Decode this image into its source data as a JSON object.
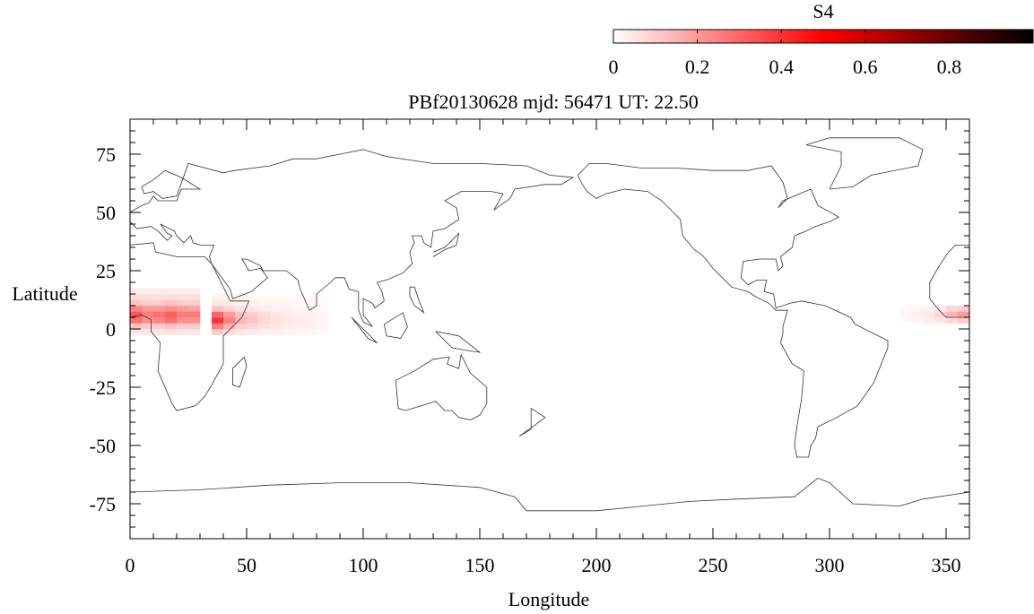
{
  "chart_data": {
    "type": "heatmap",
    "title": "PBf20130628  mjd: 56471  UT:  22.50",
    "xlabel": "Longitude",
    "ylabel": "Latitude",
    "xlim": [
      0,
      360
    ],
    "ylim": [
      -90,
      90
    ],
    "xticks": [
      0,
      50,
      100,
      150,
      200,
      250,
      300,
      350
    ],
    "xtick_labels": [
      "0",
      "50",
      "100",
      "150",
      "200",
      "250",
      "300",
      "350"
    ],
    "yticks": [
      75,
      50,
      25,
      0,
      -25,
      -50,
      -75
    ],
    "ytick_labels": [
      "75",
      "50",
      "25",
      "0",
      "-25",
      "-50",
      "-75"
    ],
    "colorbar": {
      "label": "S4",
      "range": [
        0,
        1
      ],
      "ticks": [
        0,
        0.2,
        0.4,
        0.6,
        0.8
      ],
      "tick_labels": [
        "0",
        "0.2",
        "0.4",
        "0.6",
        "0.8"
      ],
      "colors": [
        "#ffffff",
        "#ff0000",
        "#000000"
      ]
    },
    "grids": [
      {
        "lon0": 0,
        "lat0": -2.5,
        "dlon": 5,
        "dlat": 2.5,
        "values": [
          [
            0.05,
            0.05,
            0.05,
            0.06,
            0.05,
            0.05
          ],
          [
            0.12,
            0.1,
            0.1,
            0.12,
            0.1,
            0.1
          ],
          [
            0.28,
            0.22,
            0.24,
            0.28,
            0.22,
            0.22
          ],
          [
            0.33,
            0.26,
            0.28,
            0.32,
            0.26,
            0.26
          ],
          [
            0.24,
            0.2,
            0.2,
            0.22,
            0.2,
            0.18
          ],
          [
            0.12,
            0.1,
            0.1,
            0.12,
            0.1,
            0.1
          ],
          [
            0.07,
            0.06,
            0.06,
            0.07,
            0.06,
            0.06
          ],
          [
            0.04,
            0.04,
            0.04,
            0.04,
            0.04,
            0.04
          ]
        ]
      },
      {
        "lon0": 35,
        "lat0": -2.5,
        "dlon": 5,
        "dlat": 2.5,
        "values": [
          [
            0.1,
            0.07,
            0.05,
            0.04,
            0.03,
            0.03,
            0.02,
            0.02,
            0.02,
            0.01
          ],
          [
            0.25,
            0.15,
            0.1,
            0.08,
            0.06,
            0.05,
            0.04,
            0.03,
            0.03,
            0.02
          ],
          [
            0.4,
            0.25,
            0.15,
            0.12,
            0.08,
            0.06,
            0.05,
            0.04,
            0.03,
            0.02
          ],
          [
            0.3,
            0.2,
            0.12,
            0.1,
            0.07,
            0.05,
            0.04,
            0.03,
            0.03,
            0.02
          ],
          [
            0.12,
            0.08,
            0.06,
            0.05,
            0.04,
            0.03,
            0.03,
            0.02,
            0.02,
            0.01
          ],
          [
            0.05,
            0.04,
            0.03,
            0.03,
            0.02,
            0.02,
            0.02,
            0.01,
            0.01,
            0.01
          ],
          [
            0.02,
            0.02,
            0.02,
            0.01,
            0.01,
            0.01,
            0.01,
            0.01,
            0.01,
            0.01
          ]
        ]
      },
      {
        "lon0": 330,
        "lat0": 2.5,
        "dlon": 5,
        "dlat": 2.5,
        "values": [
          [
            0.01,
            0.02,
            0.03,
            0.05,
            0.08,
            0.1
          ],
          [
            0.02,
            0.03,
            0.05,
            0.08,
            0.15,
            0.2
          ],
          [
            0.01,
            0.02,
            0.03,
            0.04,
            0.08,
            0.1
          ]
        ]
      }
    ],
    "coastlines": [
      [
        [
          0,
          36
        ],
        [
          10,
          37
        ],
        [
          11,
          33
        ],
        [
          20,
          31
        ],
        [
          32,
          31
        ],
        [
          35,
          28
        ],
        [
          43,
          12
        ],
        [
          51,
          12
        ],
        [
          48,
          5
        ],
        [
          40,
          -3
        ],
        [
          40,
          -15
        ],
        [
          35,
          -24
        ],
        [
          32,
          -29
        ],
        [
          28,
          -33
        ],
        [
          20,
          -35
        ],
        [
          18,
          -32
        ],
        [
          12,
          -18
        ],
        [
          13,
          -6
        ],
        [
          9,
          -1
        ],
        [
          9,
          4
        ],
        [
          5,
          6
        ],
        [
          0,
          5
        ]
      ],
      [
        [
          360,
          5
        ],
        [
          355,
          5
        ],
        [
          350,
          5
        ],
        [
          347,
          8
        ],
        [
          343,
          13
        ],
        [
          343,
          20
        ],
        [
          347,
          27
        ],
        [
          351,
          33
        ],
        [
          354,
          36
        ],
        [
          360,
          36
        ]
      ],
      [
        [
          0,
          50
        ],
        [
          5,
          53
        ],
        [
          8,
          54
        ],
        [
          10,
          57
        ],
        [
          12,
          55
        ],
        [
          20,
          55
        ],
        [
          22,
          60
        ],
        [
          30,
          60
        ],
        [
          22,
          65
        ],
        [
          15,
          68
        ],
        [
          10,
          64
        ],
        [
          5,
          61
        ],
        [
          6,
          58
        ],
        [
          10,
          59
        ],
        [
          14,
          56
        ],
        [
          20,
          57
        ],
        [
          25,
          71
        ],
        [
          40,
          67
        ],
        [
          45,
          68
        ],
        [
          60,
          70
        ],
        [
          70,
          73
        ],
        [
          80,
          73
        ],
        [
          100,
          77
        ],
        [
          110,
          74
        ],
        [
          130,
          71
        ],
        [
          150,
          71
        ],
        [
          170,
          70
        ],
        [
          180,
          66
        ],
        [
          190,
          65
        ],
        [
          185,
          62
        ],
        [
          178,
          62
        ],
        [
          165,
          60
        ],
        [
          163,
          56
        ],
        [
          156,
          51
        ],
        [
          160,
          58
        ],
        [
          155,
          59
        ],
        [
          142,
          59
        ],
        [
          135,
          55
        ],
        [
          140,
          52
        ],
        [
          141,
          47
        ],
        [
          135,
          43
        ],
        [
          130,
          42
        ],
        [
          129,
          35
        ],
        [
          126,
          37
        ],
        [
          125,
          40
        ],
        [
          121,
          40
        ],
        [
          122,
          37
        ],
        [
          120,
          33
        ],
        [
          121,
          28
        ],
        [
          117,
          24
        ],
        [
          110,
          21
        ],
        [
          106,
          20
        ],
        [
          108,
          16
        ],
        [
          109,
          12
        ],
        [
          105,
          9
        ],
        [
          104,
          11
        ],
        [
          100,
          13
        ],
        [
          100,
          6
        ],
        [
          104,
          1
        ],
        [
          100,
          3
        ],
        [
          98,
          8
        ],
        [
          98,
          16
        ],
        [
          94,
          17
        ],
        [
          92,
          22
        ],
        [
          88,
          22
        ],
        [
          86,
          20
        ],
        [
          80,
          15
        ],
        [
          80,
          10
        ],
        [
          77,
          8
        ],
        [
          73,
          17
        ],
        [
          72,
          21
        ],
        [
          67,
          25
        ],
        [
          57,
          25
        ],
        [
          56,
          27
        ],
        [
          50,
          30
        ],
        [
          48,
          30
        ],
        [
          51,
          25
        ],
        [
          56,
          26
        ],
        [
          59,
          22
        ],
        [
          52,
          16
        ],
        [
          44,
          13
        ],
        [
          43,
          17
        ],
        [
          35,
          28
        ],
        [
          34,
          31
        ],
        [
          36,
          36
        ],
        [
          30,
          36
        ],
        [
          27,
          37
        ],
        [
          26,
          40
        ],
        [
          23,
          37
        ],
        [
          20,
          40
        ],
        [
          19,
          42
        ],
        [
          13,
          45
        ],
        [
          16,
          41
        ],
        [
          18,
          40
        ],
        [
          16,
          38
        ],
        [
          12,
          42
        ],
        [
          9,
          44
        ],
        [
          3,
          43
        ],
        [
          0,
          46
        ]
      ],
      [
        [
          192,
          66
        ],
        [
          197,
          71
        ],
        [
          204,
          71
        ],
        [
          220,
          69
        ],
        [
          235,
          69
        ],
        [
          250,
          68
        ],
        [
          265,
          68
        ],
        [
          275,
          70
        ],
        [
          280,
          63
        ],
        [
          282,
          56
        ],
        [
          278,
          52
        ],
        [
          280,
          55
        ],
        [
          292,
          60
        ],
        [
          295,
          53
        ],
        [
          304,
          48
        ],
        [
          300,
          46
        ],
        [
          294,
          44
        ],
        [
          290,
          42
        ],
        [
          285,
          40
        ],
        [
          284,
          35
        ],
        [
          279,
          31
        ],
        [
          280,
          27
        ],
        [
          278,
          25
        ],
        [
          277,
          30
        ],
        [
          270,
          30
        ],
        [
          263,
          29
        ],
        [
          262,
          22
        ],
        [
          265,
          19
        ],
        [
          269,
          21
        ],
        [
          273,
          21
        ],
        [
          272,
          16
        ],
        [
          276,
          15
        ],
        [
          277,
          9
        ],
        [
          283,
          11
        ],
        [
          288,
          12
        ],
        [
          298,
          10
        ],
        [
          309,
          5
        ],
        [
          311,
          2
        ],
        [
          325,
          -5
        ],
        [
          325,
          -8
        ],
        [
          319,
          -23
        ],
        [
          312,
          -33
        ],
        [
          303,
          -38
        ],
        [
          295,
          -42
        ],
        [
          294,
          -47
        ],
        [
          292,
          -50
        ],
        [
          291,
          -55
        ],
        [
          286,
          -55
        ],
        [
          285,
          -50
        ],
        [
          286,
          -42
        ],
        [
          288,
          -30
        ],
        [
          289,
          -18
        ],
        [
          284,
          -15
        ],
        [
          279,
          -6
        ],
        [
          280,
          -2
        ],
        [
          280,
          1
        ],
        [
          282,
          8
        ],
        [
          277,
          8
        ],
        [
          274,
          11
        ],
        [
          268,
          14
        ],
        [
          265,
          16
        ],
        [
          258,
          18
        ],
        [
          254,
          22
        ],
        [
          250,
          26
        ],
        [
          247,
          30
        ],
        [
          245,
          32
        ],
        [
          242,
          34
        ],
        [
          237,
          40
        ],
        [
          236,
          47
        ],
        [
          233,
          50
        ],
        [
          228,
          55
        ],
        [
          222,
          59
        ],
        [
          212,
          60
        ],
        [
          204,
          58
        ],
        [
          200,
          56
        ],
        [
          196,
          59
        ],
        [
          194,
          62
        ],
        [
          192,
          66
        ]
      ],
      [
        [
          300,
          60
        ],
        [
          310,
          61
        ],
        [
          318,
          66
        ],
        [
          338,
          70
        ],
        [
          340,
          77
        ],
        [
          330,
          82
        ],
        [
          300,
          82
        ],
        [
          290,
          79
        ],
        [
          305,
          76
        ],
        [
          305,
          70
        ],
        [
          300,
          60
        ]
      ],
      [
        [
          114,
          -22
        ],
        [
          122,
          -18
        ],
        [
          130,
          -13
        ],
        [
          137,
          -12
        ],
        [
          136,
          -15
        ],
        [
          141,
          -17
        ],
        [
          142,
          -11
        ],
        [
          146,
          -19
        ],
        [
          153,
          -25
        ],
        [
          153,
          -32
        ],
        [
          150,
          -37
        ],
        [
          146,
          -39
        ],
        [
          141,
          -38
        ],
        [
          138,
          -35
        ],
        [
          135,
          -35
        ],
        [
          131,
          -31
        ],
        [
          125,
          -33
        ],
        [
          118,
          -35
        ],
        [
          115,
          -34
        ],
        [
          114,
          -22
        ]
      ],
      [
        [
          0,
          -70
        ],
        [
          30,
          -69
        ],
        [
          60,
          -67
        ],
        [
          90,
          -66
        ],
        [
          120,
          -66
        ],
        [
          150,
          -68
        ],
        [
          165,
          -72
        ],
        [
          170,
          -78
        ],
        [
          200,
          -78
        ],
        [
          220,
          -76
        ],
        [
          240,
          -74
        ],
        [
          260,
          -73
        ],
        [
          285,
          -72
        ],
        [
          295,
          -64
        ],
        [
          300,
          -66
        ],
        [
          310,
          -75
        ],
        [
          330,
          -76
        ],
        [
          340,
          -73
        ],
        [
          360,
          -70
        ]
      ],
      [
        [
          109,
          2
        ],
        [
          117,
          7
        ],
        [
          119,
          1
        ],
        [
          116,
          -4
        ],
        [
          110,
          -3
        ],
        [
          109,
          2
        ]
      ],
      [
        [
          95,
          5
        ],
        [
          106,
          -6
        ],
        [
          102,
          -4
        ],
        [
          95,
          5
        ]
      ],
      [
        [
          49,
          -12
        ],
        [
          50,
          -16
        ],
        [
          47,
          -25
        ],
        [
          44,
          -24
        ],
        [
          44,
          -17
        ],
        [
          49,
          -12
        ]
      ],
      [
        [
          130,
          31
        ],
        [
          135,
          34
        ],
        [
          140,
          36
        ],
        [
          141,
          41
        ],
        [
          140,
          40
        ],
        [
          135,
          35
        ],
        [
          130,
          33
        ]
      ],
      [
        [
          172,
          -34
        ],
        [
          178,
          -38
        ],
        [
          174,
          -41
        ],
        [
          167,
          -46
        ],
        [
          172,
          -43
        ],
        [
          172,
          -34
        ]
      ],
      [
        [
          131,
          -1
        ],
        [
          141,
          -3
        ],
        [
          150,
          -10
        ],
        [
          143,
          -9
        ],
        [
          138,
          -8
        ],
        [
          131,
          -1
        ]
      ],
      [
        [
          120,
          18
        ],
        [
          122,
          18
        ],
        [
          124,
          12
        ],
        [
          126,
          7
        ],
        [
          122,
          10
        ],
        [
          120,
          14
        ],
        [
          120,
          18
        ]
      ]
    ]
  }
}
